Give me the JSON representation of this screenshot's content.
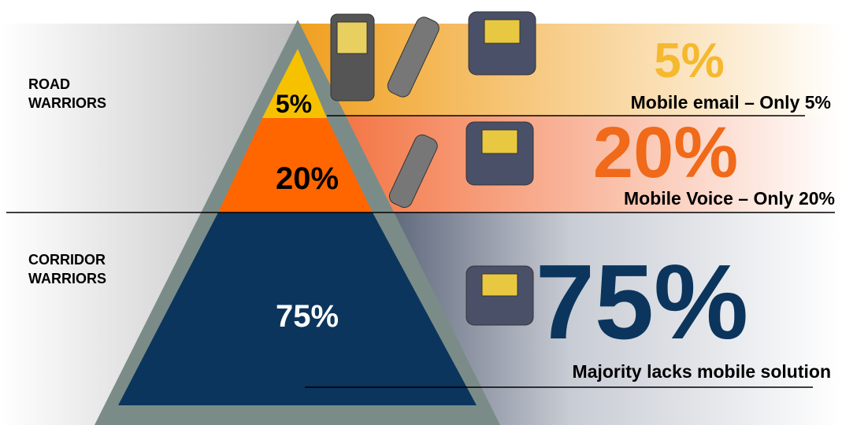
{
  "groups": [
    {
      "label": "ROAD WARRIORS"
    },
    {
      "label": "CORRIDOR WARRIORS"
    }
  ],
  "tiers": [
    {
      "pyramid_label": "5%",
      "big_label": "5%",
      "caption": "Mobile email – Only 5%"
    },
    {
      "pyramid_label": "20%",
      "big_label": "20%",
      "caption": "Mobile Voice – Only 20%"
    },
    {
      "pyramid_label": "75%",
      "big_label": "75%",
      "caption": "Majority lacks mobile solution"
    }
  ]
}
